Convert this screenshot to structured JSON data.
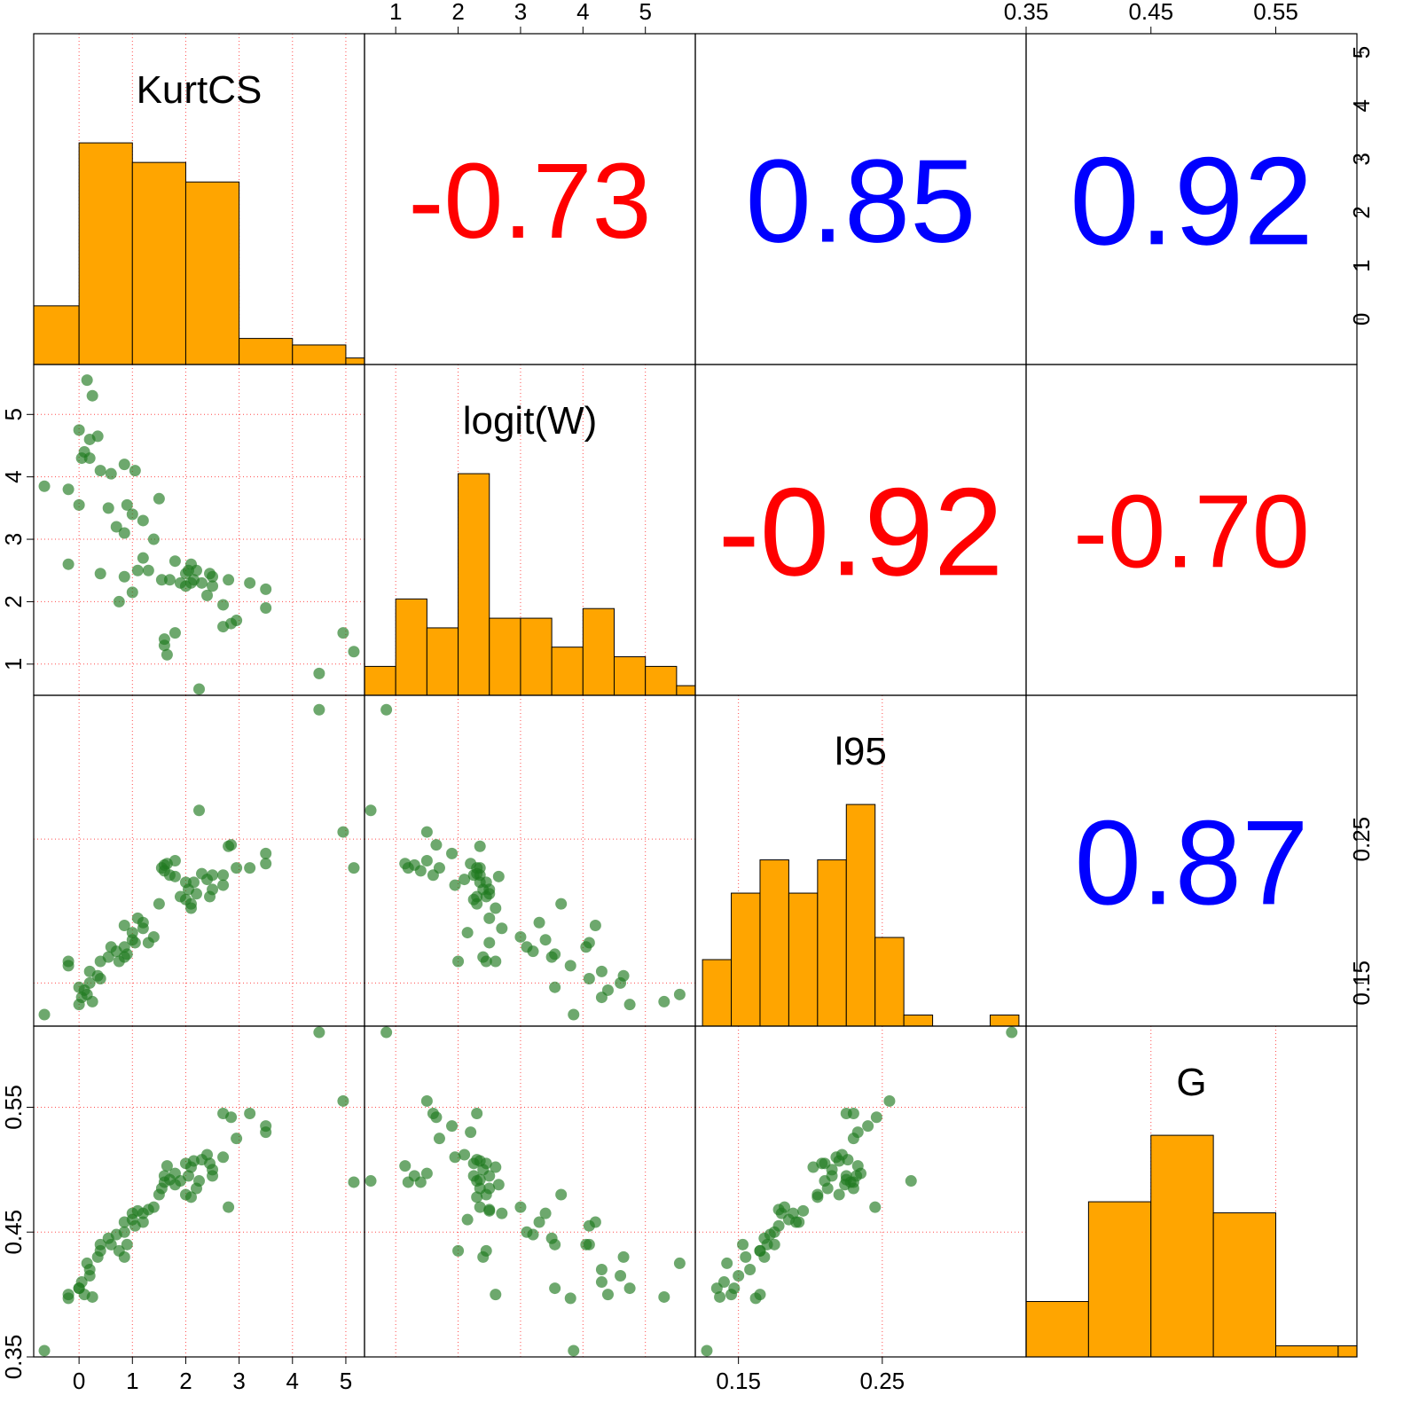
{
  "chart_data": {
    "type": "scatter",
    "variables": [
      {
        "name": "KurtCS",
        "ticks": [
          0,
          1,
          2,
          3,
          4,
          5
        ],
        "tick_labels": [
          "0",
          "1",
          "2",
          "3",
          "4",
          "5"
        ],
        "range": [
          -0.85,
          5.35
        ]
      },
      {
        "name": "logit(W)",
        "ticks": [
          1,
          2,
          3,
          4,
          5
        ],
        "tick_labels": [
          "1",
          "2",
          "3",
          "4",
          "5"
        ],
        "range": [
          0.5,
          5.8
        ]
      },
      {
        "name": "l95",
        "ticks": [
          0.15,
          0.25
        ],
        "tick_labels": [
          "0.15",
          "0.25"
        ],
        "range": [
          0.12,
          0.35
        ]
      },
      {
        "name": "G",
        "ticks": [
          0.35,
          0.45,
          0.55
        ],
        "tick_labels": [
          "0.35",
          "0.45",
          "0.55"
        ],
        "range": [
          0.35,
          0.615
        ]
      }
    ],
    "correlations": [
      {
        "row": 0,
        "col": 1,
        "label": "-0.73",
        "value": -0.73
      },
      {
        "row": 0,
        "col": 2,
        "label": "0.85",
        "value": 0.85
      },
      {
        "row": 0,
        "col": 3,
        "label": "0.92",
        "value": 0.92
      },
      {
        "row": 1,
        "col": 2,
        "label": "-0.92",
        "value": -0.92
      },
      {
        "row": 1,
        "col": 3,
        "label": "-0.70",
        "value": -0.7
      },
      {
        "row": 2,
        "col": 3,
        "label": "0.87",
        "value": 0.87
      }
    ],
    "histograms": [
      {
        "variable": "KurtCS",
        "bin_edges": [
          -0.85,
          0,
          1,
          2,
          3,
          4,
          5,
          5.35
        ],
        "counts": [
          9,
          34,
          31,
          28,
          4,
          3,
          1
        ]
      },
      {
        "variable": "logit(W)",
        "bin_edges": [
          0.5,
          1,
          1.5,
          2,
          2.5,
          3,
          3.5,
          4,
          4.5,
          5,
          5.5,
          5.8
        ],
        "counts": [
          3,
          10,
          7,
          23,
          8,
          8,
          5,
          9,
          4,
          3,
          1
        ]
      },
      {
        "variable": "l95",
        "bin_edges": [
          0.125,
          0.145,
          0.165,
          0.185,
          0.205,
          0.225,
          0.245,
          0.265,
          0.285,
          0.305,
          0.325,
          0.345
        ],
        "counts": [
          6,
          12,
          15,
          12,
          15,
          20,
          8,
          1,
          0,
          0,
          1
        ]
      },
      {
        "variable": "G",
        "bin_edges": [
          0.35,
          0.4,
          0.45,
          0.5,
          0.55,
          0.6,
          0.615
        ],
        "counts": [
          5,
          14,
          20,
          13,
          1,
          1
        ]
      }
    ],
    "points": [
      [
        -0.65,
        3.85,
        0.128,
        0.355
      ],
      [
        -0.2,
        2.6,
        0.165,
        0.4
      ],
      [
        -0.2,
        3.8,
        0.162,
        0.397
      ],
      [
        0.0,
        4.75,
        0.135,
        0.405
      ],
      [
        0.1,
        4.4,
        0.145,
        0.4
      ],
      [
        0.05,
        4.3,
        0.14,
        0.41
      ],
      [
        0.2,
        4.6,
        0.15,
        0.415
      ],
      [
        0.25,
        5.3,
        0.137,
        0.398
      ],
      [
        0.15,
        5.55,
        0.142,
        0.425
      ],
      [
        0.35,
        4.65,
        0.155,
        0.43
      ],
      [
        0.2,
        4.3,
        0.158,
        0.42
      ],
      [
        0.0,
        3.55,
        0.147,
        0.405
      ],
      [
        0.4,
        2.45,
        0.165,
        0.435
      ],
      [
        0.4,
        4.1,
        0.153,
        0.44
      ],
      [
        0.55,
        3.5,
        0.168,
        0.445
      ],
      [
        0.6,
        4.05,
        0.175,
        0.44
      ],
      [
        0.7,
        3.2,
        0.172,
        0.448
      ],
      [
        0.75,
        2.0,
        0.165,
        0.435
      ],
      [
        0.85,
        3.1,
        0.175,
        0.45
      ],
      [
        0.85,
        2.4,
        0.168,
        0.43
      ],
      [
        0.9,
        3.55,
        0.17,
        0.44
      ],
      [
        1.0,
        2.15,
        0.185,
        0.46
      ],
      [
        1.0,
        3.4,
        0.18,
        0.465
      ],
      [
        0.85,
        4.2,
        0.19,
        0.458
      ],
      [
        1.05,
        4.1,
        0.178,
        0.455
      ],
      [
        1.1,
        2.5,
        0.195,
        0.467
      ],
      [
        1.2,
        2.7,
        0.188,
        0.465
      ],
      [
        1.2,
        3.3,
        0.192,
        0.458
      ],
      [
        1.3,
        2.5,
        0.178,
        0.468
      ],
      [
        1.4,
        3.0,
        0.182,
        0.47
      ],
      [
        1.5,
        3.65,
        0.205,
        0.48
      ],
      [
        1.55,
        2.35,
        0.23,
        0.485
      ],
      [
        1.6,
        1.3,
        0.232,
        0.495
      ],
      [
        1.6,
        1.4,
        0.228,
        0.49
      ],
      [
        1.65,
        1.15,
        0.233,
        0.503
      ],
      [
        1.7,
        2.35,
        0.225,
        0.492
      ],
      [
        1.8,
        1.5,
        0.235,
        0.497
      ],
      [
        1.8,
        2.65,
        0.224,
        0.488
      ],
      [
        1.9,
        2.3,
        0.21,
        0.491
      ],
      [
        2.0,
        2.45,
        0.22,
        0.48
      ],
      [
        2.0,
        2.25,
        0.208,
        0.505
      ],
      [
        2.05,
        2.5,
        0.215,
        0.495
      ],
      [
        2.1,
        2.3,
        0.205,
        0.478
      ],
      [
        2.1,
        2.6,
        0.202,
        0.502
      ],
      [
        2.15,
        2.35,
        0.22,
        0.507
      ],
      [
        2.2,
        2.5,
        0.212,
        0.485
      ],
      [
        2.25,
        0.6,
        0.27,
        0.491
      ],
      [
        2.3,
        2.3,
        0.226,
        0.508
      ],
      [
        2.4,
        2.1,
        0.222,
        0.512
      ],
      [
        2.45,
        2.45,
        0.21,
        0.505
      ],
      [
        2.5,
        2.4,
        0.215,
        0.5
      ],
      [
        2.5,
        2.25,
        0.225,
        0.495
      ],
      [
        2.7,
        1.6,
        0.225,
        0.545
      ],
      [
        2.7,
        1.95,
        0.218,
        0.51
      ],
      [
        2.8,
        2.35,
        0.245,
        0.47
      ],
      [
        2.85,
        1.65,
        0.246,
        0.542
      ],
      [
        2.95,
        1.7,
        0.23,
        0.525
      ],
      [
        3.2,
        2.3,
        0.23,
        0.545
      ],
      [
        3.5,
        2.2,
        0.233,
        0.53
      ],
      [
        3.5,
        1.9,
        0.24,
        0.535
      ],
      [
        4.5,
        0.85,
        0.34,
        0.61
      ],
      [
        4.95,
        1.5,
        0.255,
        0.555
      ],
      [
        5.15,
        1.2,
        0.23,
        0.49
      ]
    ]
  }
}
